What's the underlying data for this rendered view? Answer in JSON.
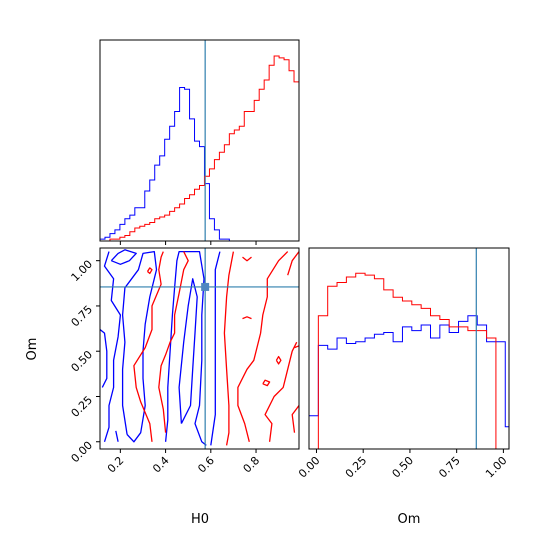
{
  "chart_data": {
    "type": "corner",
    "truth": {
      "H0": 0.575,
      "Om": 0.855
    },
    "colors": {
      "series_a": "#0000ff",
      "series_b": "#ff0000",
      "truth": "#2f7fae",
      "axes": "#000000"
    },
    "panels": [
      {
        "id": "H0-marginal",
        "type": "histogram",
        "xlim": [
          0.11,
          0.99
        ],
        "x_ticks": [
          0.2,
          0.4,
          0.6,
          0.8
        ],
        "y_max": 1.0,
        "bin_edges": [
          0.11,
          0.132,
          0.154,
          0.176,
          0.198,
          0.22,
          0.242,
          0.264,
          0.286,
          0.308,
          0.33,
          0.352,
          0.374,
          0.396,
          0.418,
          0.44,
          0.462,
          0.484,
          0.506,
          0.528,
          0.55,
          0.572,
          0.594,
          0.616,
          0.638,
          0.66,
          0.682,
          0.704,
          0.726,
          0.748,
          0.77,
          0.792,
          0.814,
          0.836,
          0.858,
          0.88,
          0.902,
          0.924,
          0.946,
          0.968,
          0.99
        ],
        "series": [
          {
            "color": "blue",
            "values": [
              0.01,
              0.02,
              0.04,
              0.06,
              0.09,
              0.12,
              0.14,
              0.18,
              0.18,
              0.27,
              0.33,
              0.41,
              0.46,
              0.55,
              0.62,
              0.7,
              0.83,
              0.82,
              0.66,
              0.54,
              0.51,
              0.31,
              0.12,
              0.06,
              0.01,
              0.01,
              0.0,
              0.0,
              0.0,
              0.0,
              0.0,
              0.0,
              0.0,
              0.0,
              0.0,
              0.0,
              0.0,
              0.0,
              0.0,
              0.0
            ]
          },
          {
            "color": "red",
            "values": [
              0.0,
              0.0,
              0.01,
              0.01,
              0.02,
              0.03,
              0.05,
              0.07,
              0.08,
              0.09,
              0.1,
              0.12,
              0.13,
              0.14,
              0.16,
              0.18,
              0.2,
              0.23,
              0.25,
              0.28,
              0.3,
              0.35,
              0.39,
              0.44,
              0.48,
              0.52,
              0.58,
              0.6,
              0.62,
              0.7,
              0.7,
              0.76,
              0.82,
              0.87,
              0.95,
              1.0,
              0.99,
              0.98,
              0.92,
              0.86
            ]
          }
        ]
      },
      {
        "id": "Om-marginal",
        "type": "histogram",
        "xlim": [
          -0.04,
          1.03
        ],
        "x_ticks": [
          0.0,
          0.25,
          0.5,
          0.75,
          1.0
        ],
        "x_tick_labels": [
          "0.00",
          "0.25",
          "0.50",
          "0.75",
          "1.00"
        ],
        "xlabel": "Om",
        "y_max": 1.0,
        "bin_edges": [
          -0.04,
          0.01,
          0.06,
          0.11,
          0.16,
          0.21,
          0.26,
          0.31,
          0.36,
          0.41,
          0.46,
          0.51,
          0.56,
          0.61,
          0.66,
          0.71,
          0.76,
          0.81,
          0.86,
          0.91,
          0.96,
          1.01,
          1.03
        ],
        "series": [
          {
            "color": "blue",
            "values": [
              0.18,
              0.56,
              0.54,
              0.6,
              0.57,
              0.58,
              0.6,
              0.62,
              0.63,
              0.58,
              0.66,
              0.64,
              0.67,
              0.6,
              0.67,
              0.63,
              0.69,
              0.72,
              0.67,
              0.58,
              0.58,
              0.12
            ]
          },
          {
            "color": "red",
            "values": [
              0.0,
              0.72,
              0.88,
              0.9,
              0.93,
              0.95,
              0.94,
              0.92,
              0.86,
              0.82,
              0.8,
              0.78,
              0.76,
              0.72,
              0.7,
              0.66,
              0.66,
              0.64,
              0.64,
              0.6,
              0.0,
              0.0
            ]
          }
        ]
      },
      {
        "id": "joint",
        "type": "contour",
        "xlim": [
          0.11,
          0.99
        ],
        "ylim": [
          -0.04,
          1.07
        ],
        "x_ticks": [
          0.2,
          0.4,
          0.6,
          0.8
        ],
        "y_ticks": [
          0.0,
          0.25,
          0.5,
          0.75,
          1.0
        ],
        "y_tick_labels": [
          "0.00",
          "0.25",
          "0.50",
          "0.75",
          "1.00"
        ],
        "xlabel": "H0",
        "ylabel": "Om",
        "contours": [
          {
            "color": "blue",
            "points": [
              [
                0.16,
                1.0
              ],
              [
                0.2,
                0.98
              ],
              [
                0.24,
                1.0
              ],
              [
                0.27,
                1.04
              ],
              [
                0.22,
                1.06
              ],
              [
                0.19,
                1.04
              ],
              [
                0.16,
                1.0
              ]
            ]
          },
          {
            "color": "blue",
            "points": [
              [
                0.23,
                0.04
              ],
              [
                0.21,
                0.2
              ],
              [
                0.21,
                0.4
              ],
              [
                0.22,
                0.55
              ],
              [
                0.21,
                0.7
              ],
              [
                0.22,
                0.85
              ],
              [
                0.28,
                0.95
              ],
              [
                0.3,
                1.04
              ],
              [
                0.35,
                1.05
              ],
              [
                0.36,
                0.95
              ],
              [
                0.33,
                0.8
              ],
              [
                0.31,
                0.65
              ],
              [
                0.3,
                0.5
              ],
              [
                0.3,
                0.35
              ],
              [
                0.31,
                0.2
              ],
              [
                0.29,
                0.05
              ],
              [
                0.26,
                0.0
              ],
              [
                0.23,
                0.04
              ]
            ]
          },
          {
            "color": "blue",
            "points": [
              [
                0.13,
                0.0
              ],
              [
                0.15,
                0.08
              ],
              [
                0.15,
                0.2
              ],
              [
                0.17,
                0.3
              ],
              [
                0.17,
                0.45
              ],
              [
                0.19,
                0.58
              ],
              [
                0.2,
                0.7
              ],
              [
                0.16,
                0.78
              ],
              [
                0.17,
                0.9
              ],
              [
                0.13,
                0.97
              ],
              [
                0.15,
                1.05
              ]
            ]
          },
          {
            "color": "blue",
            "points": [
              [
                0.18,
                0.06
              ],
              [
                0.19,
                0.0
              ]
            ]
          },
          {
            "color": "blue",
            "points": [
              [
                0.4,
                0.0
              ],
              [
                0.41,
                0.12
              ],
              [
                0.41,
                0.3
              ],
              [
                0.42,
                0.5
              ],
              [
                0.43,
                0.7
              ],
              [
                0.44,
                0.85
              ],
              [
                0.45,
                1.0
              ],
              [
                0.46,
                1.05
              ],
              [
                0.55,
                1.05
              ],
              [
                0.57,
                0.9
              ],
              [
                0.56,
                0.7
              ],
              [
                0.56,
                0.45
              ],
              [
                0.55,
                0.2
              ],
              [
                0.53,
                0.1
              ],
              [
                0.56,
                0.0
              ],
              [
                0.58,
                -0.02
              ]
            ]
          },
          {
            "color": "blue",
            "points": [
              [
                0.47,
                0.1
              ],
              [
                0.46,
                0.3
              ],
              [
                0.48,
                0.55
              ],
              [
                0.5,
                0.75
              ],
              [
                0.52,
                0.9
              ],
              [
                0.54,
                0.8
              ],
              [
                0.53,
                0.6
              ],
              [
                0.52,
                0.4
              ],
              [
                0.51,
                0.2
              ],
              [
                0.47,
                0.1
              ]
            ]
          },
          {
            "color": "blue",
            "points": [
              [
                0.6,
                -0.02
              ],
              [
                0.62,
                0.15
              ],
              [
                0.62,
                0.35
              ],
              [
                0.62,
                0.6
              ],
              [
                0.62,
                0.8
              ],
              [
                0.62,
                0.95
              ],
              [
                0.64,
                1.05
              ]
            ]
          },
          {
            "color": "blue",
            "points": [
              [
                0.12,
                0.3
              ],
              [
                0.14,
                0.35
              ],
              [
                0.14,
                0.5
              ],
              [
                0.13,
                0.6
              ],
              [
                0.11,
                0.62
              ]
            ]
          },
          {
            "color": "red",
            "points": [
              [
                0.34,
                0.0
              ],
              [
                0.33,
                0.1
              ],
              [
                0.29,
                0.22
              ],
              [
                0.27,
                0.3
              ],
              [
                0.26,
                0.42
              ],
              [
                0.31,
                0.52
              ],
              [
                0.34,
                0.62
              ],
              [
                0.34,
                0.75
              ],
              [
                0.38,
                0.87
              ],
              [
                0.37,
                0.95
              ],
              [
                0.38,
                1.02
              ],
              [
                0.39,
                1.05
              ]
            ]
          },
          {
            "color": "red",
            "points": [
              [
                0.4,
                0.05
              ],
              [
                0.39,
                0.18
              ],
              [
                0.37,
                0.3
              ],
              [
                0.38,
                0.42
              ],
              [
                0.4,
                0.48
              ],
              [
                0.42,
                0.55
              ],
              [
                0.44,
                0.6
              ],
              [
                0.44,
                0.7
              ],
              [
                0.46,
                0.82
              ],
              [
                0.48,
                0.95
              ],
              [
                0.5,
                1.0
              ],
              [
                0.48,
                1.05
              ]
            ]
          },
          {
            "color": "red",
            "points": [
              [
                0.7,
                1.05
              ],
              [
                0.68,
                0.92
              ],
              [
                0.67,
                0.8
              ],
              [
                0.66,
                0.6
              ],
              [
                0.67,
                0.4
              ],
              [
                0.68,
                0.2
              ],
              [
                0.68,
                0.05
              ],
              [
                0.67,
                -0.02
              ]
            ]
          },
          {
            "color": "red",
            "points": [
              [
                0.77,
                0.0
              ],
              [
                0.75,
                0.1
              ],
              [
                0.72,
                0.2
              ],
              [
                0.72,
                0.3
              ],
              [
                0.76,
                0.4
              ],
              [
                0.79,
                0.45
              ],
              [
                0.82,
                0.6
              ],
              [
                0.83,
                0.7
              ],
              [
                0.85,
                0.8
              ],
              [
                0.85,
                0.9
              ],
              [
                0.9,
                1.0
              ],
              [
                0.94,
                1.05
              ]
            ]
          },
          {
            "color": "red",
            "points": [
              [
                0.86,
                0.0
              ],
              [
                0.87,
                0.1
              ],
              [
                0.84,
                0.15
              ],
              [
                0.88,
                0.25
              ],
              [
                0.92,
                0.3
              ],
              [
                0.94,
                0.4
              ],
              [
                0.96,
                0.5
              ],
              [
                0.98,
                0.55
              ]
            ]
          },
          {
            "color": "red",
            "points": [
              [
                0.97,
                0.05
              ],
              [
                0.96,
                0.15
              ],
              [
                0.99,
                0.2
              ]
            ]
          },
          {
            "color": "red",
            "points": [
              [
                0.74,
                0.68
              ],
              [
                0.76,
                0.69
              ],
              [
                0.78,
                0.68
              ]
            ]
          },
          {
            "color": "red",
            "points": [
              [
                0.89,
                0.45
              ],
              [
                0.9,
                0.47
              ],
              [
                0.91,
                0.45
              ],
              [
                0.9,
                0.43
              ],
              [
                0.89,
                0.45
              ]
            ]
          },
          {
            "color": "red",
            "points": [
              [
                0.83,
                0.32
              ],
              [
                0.84,
                0.34
              ],
              [
                0.86,
                0.33
              ],
              [
                0.85,
                0.31
              ],
              [
                0.83,
                0.32
              ]
            ]
          },
          {
            "color": "red",
            "points": [
              [
                0.74,
                1.02
              ],
              [
                0.76,
                1.0
              ],
              [
                0.78,
                1.02
              ]
            ]
          },
          {
            "color": "red",
            "points": [
              [
                0.94,
                0.92
              ],
              [
                0.96,
                1.0
              ],
              [
                0.99,
                1.05
              ]
            ]
          },
          {
            "color": "red",
            "points": [
              [
                0.32,
                0.94
              ],
              [
                0.33,
                0.96
              ],
              [
                0.34,
                0.95
              ],
              [
                0.33,
                0.93
              ],
              [
                0.32,
                0.94
              ]
            ]
          },
          {
            "color": "red",
            "points": [
              [
                0.97,
                0.52
              ],
              [
                0.99,
                0.53
              ]
            ]
          }
        ]
      }
    ]
  }
}
